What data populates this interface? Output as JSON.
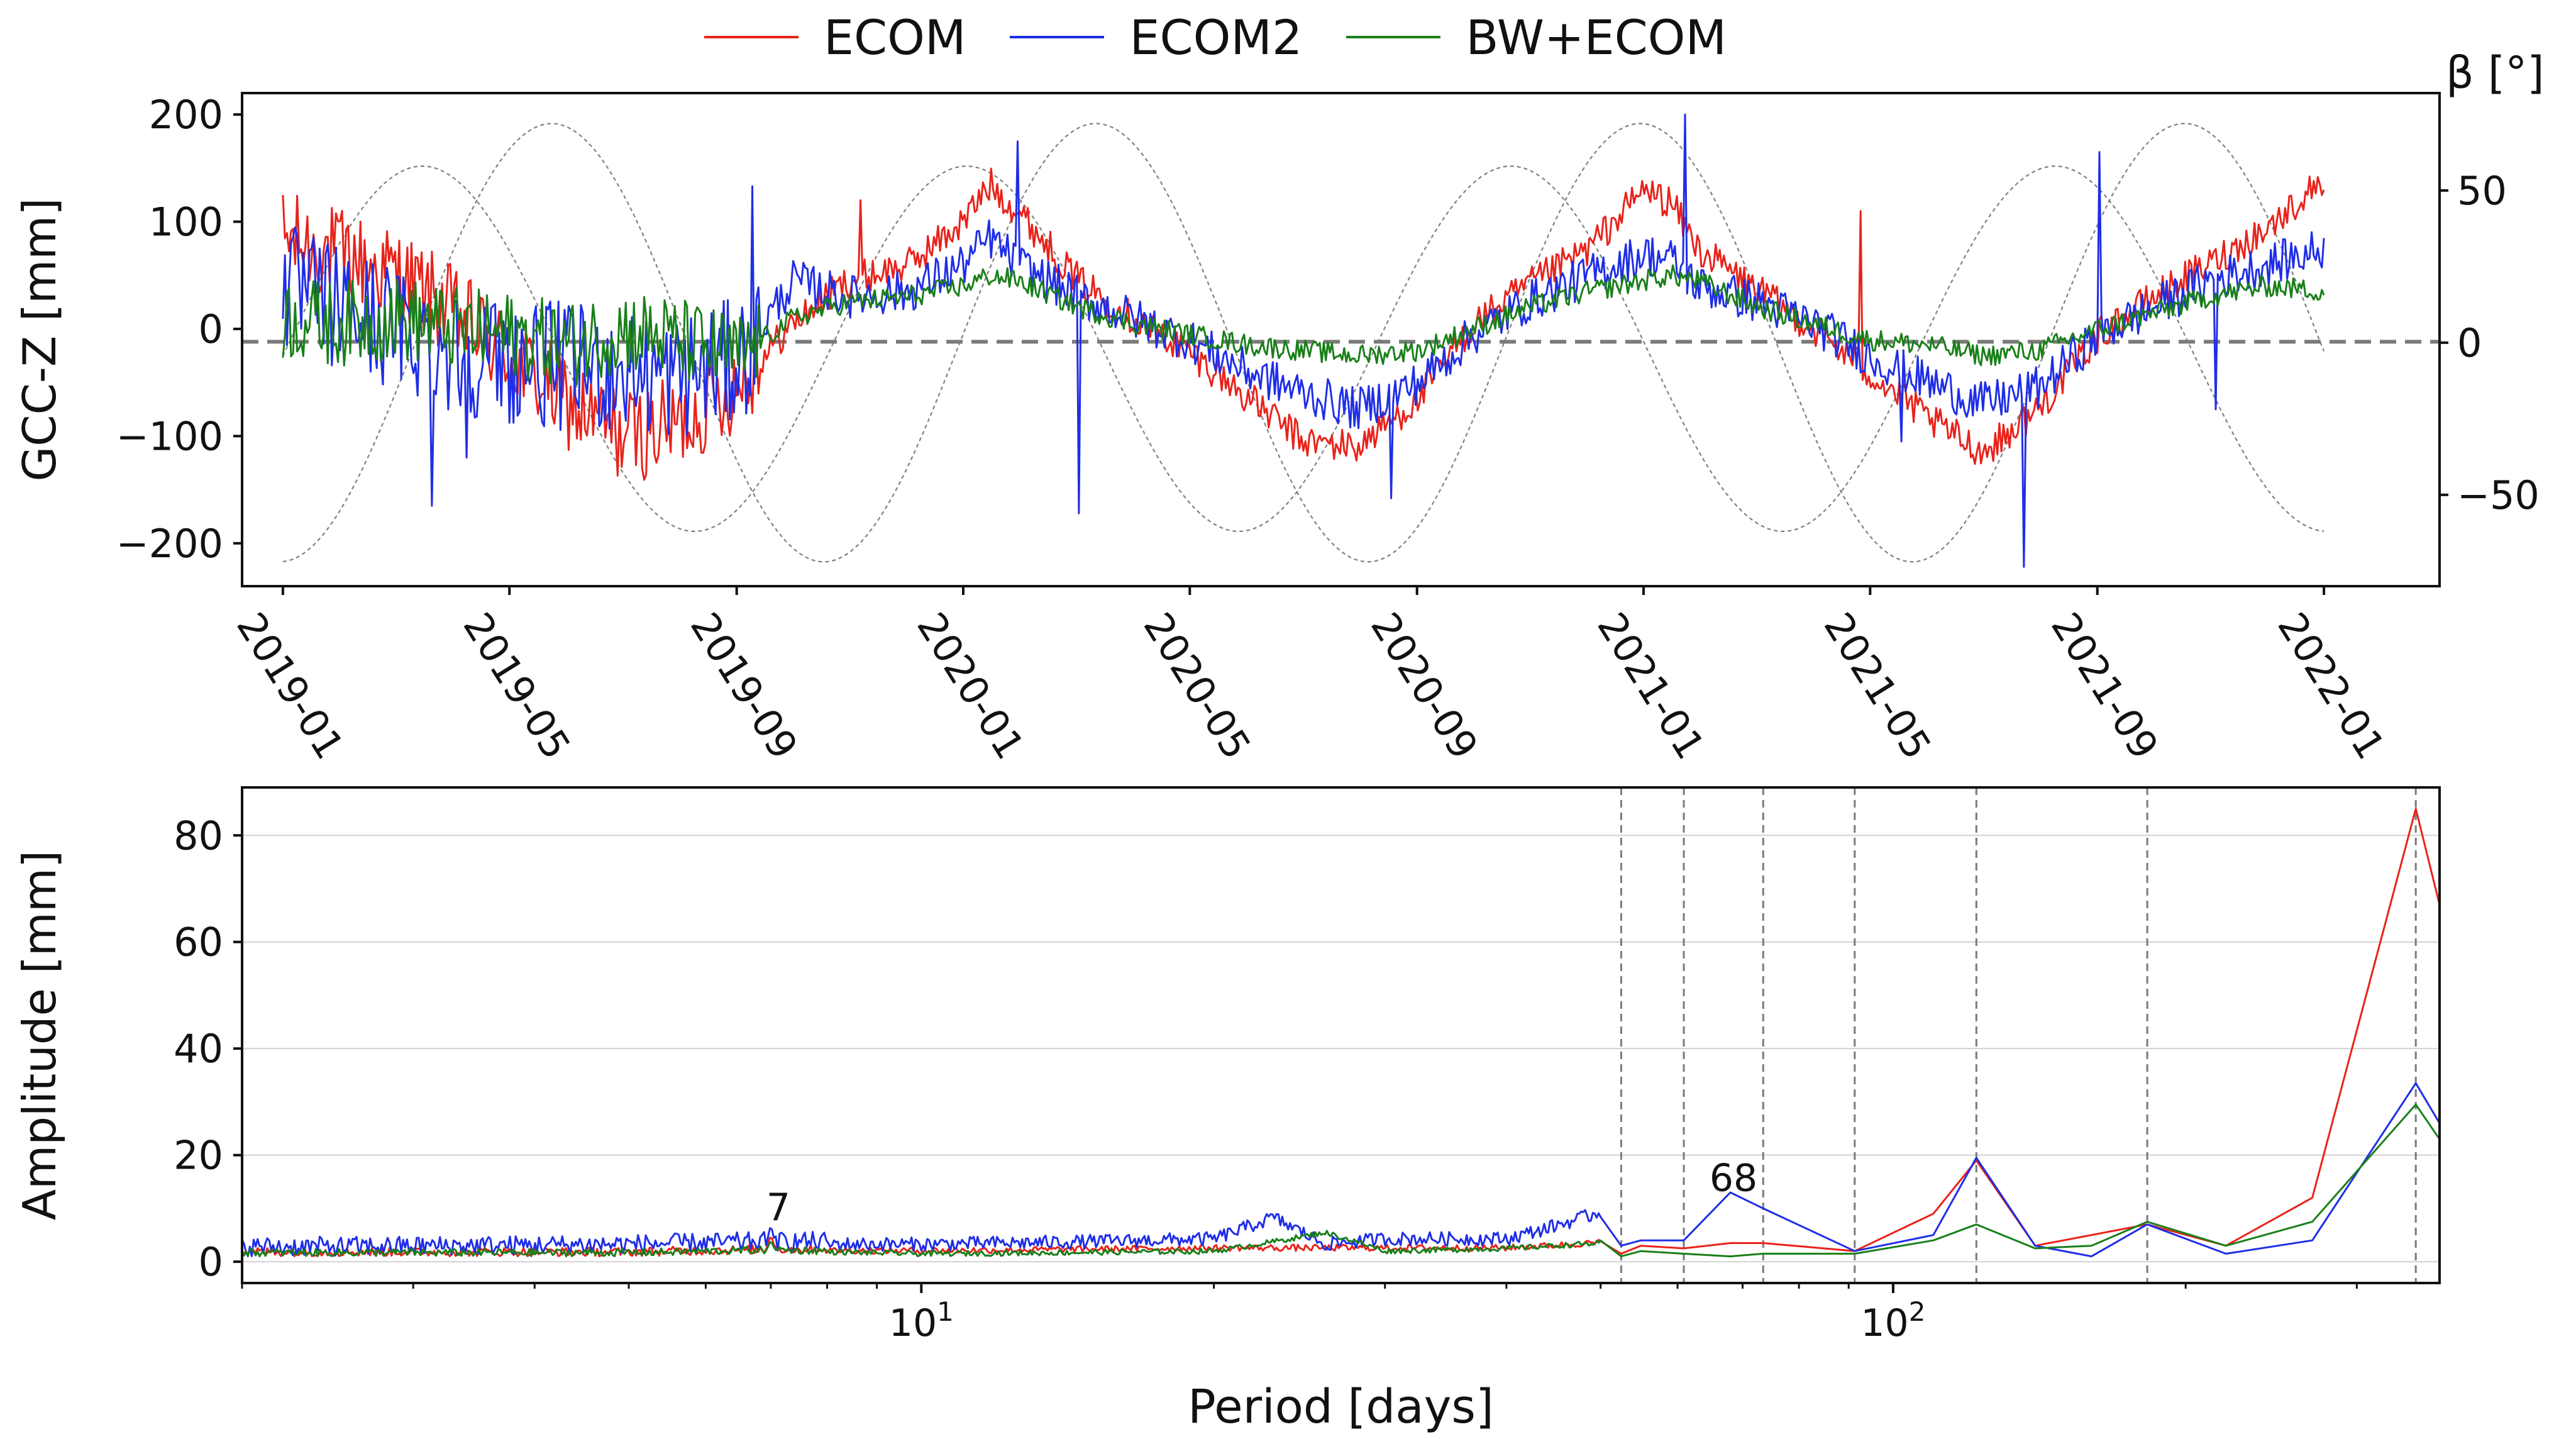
{
  "colors": {
    "ecom": "#e8231b",
    "ecom2": "#1f2ee6",
    "bw_ecom": "#1a7f1a",
    "beta": "#808080",
    "zero_line": "#7a7a7a",
    "vline": "#7a7a7a",
    "grid": "#d2d2d2"
  },
  "legend": [
    {
      "label": "ECOM",
      "color": "#e8231b"
    },
    {
      "label": "ECOM2",
      "color": "#1f2ee6"
    },
    {
      "label": "BW+ECOM",
      "color": "#1a7f1a"
    }
  ],
  "chart_data": [
    {
      "type": "line",
      "title": "",
      "xlabel": "",
      "ylabel": "GCC-Z [mm]",
      "y2label": "β [°]",
      "xlim": [
        2018.94,
        2022.17
      ],
      "ylim": [
        -240,
        220
      ],
      "y2lim": [
        -80,
        82
      ],
      "yticks": [
        {
          "value": 200,
          "label": "200"
        },
        {
          "value": 100,
          "label": "100"
        },
        {
          "value": 0,
          "label": "0"
        },
        {
          "value": -100,
          "label": "−100"
        },
        {
          "value": -200,
          "label": "−200"
        }
      ],
      "y2ticks": [
        {
          "value": 50,
          "label": "50"
        },
        {
          "value": 0,
          "label": "0"
        },
        {
          "value": -50,
          "label": "−50"
        }
      ],
      "xticks": [
        {
          "value": 2019.0,
          "label": "2019-01"
        },
        {
          "value": 2019.333,
          "label": "2019-05"
        },
        {
          "value": 2019.667,
          "label": "2019-09"
        },
        {
          "value": 2020.0,
          "label": "2020-01"
        },
        {
          "value": 2020.333,
          "label": "2020-05"
        },
        {
          "value": 2020.667,
          "label": "2020-09"
        },
        {
          "value": 2021.0,
          "label": "2021-01"
        },
        {
          "value": 2021.333,
          "label": "2021-05"
        },
        {
          "value": 2021.667,
          "label": "2021-09"
        },
        {
          "value": 2022.0,
          "label": "2022-01"
        }
      ],
      "zero_line": -12,
      "series": [
        {
          "name": "ECOM",
          "color": "#e8231b",
          "x": [
            2019.0,
            2019.08,
            2019.17,
            2019.25,
            2019.33,
            2019.42,
            2019.5,
            2019.58,
            2019.67,
            2019.75,
            2019.83,
            2019.92,
            2020.0,
            2020.04,
            2020.08,
            2020.17,
            2020.25,
            2020.33,
            2020.42,
            2020.5,
            2020.58,
            2020.67,
            2020.75,
            2020.83,
            2020.92,
            2021.0,
            2021.04,
            2021.08,
            2021.17,
            2021.25,
            2021.33,
            2021.42,
            2021.5,
            2021.58,
            2021.67,
            2021.75,
            2021.83,
            2021.92,
            2022.0
          ],
          "values": [
            85,
            70,
            50,
            15,
            -25,
            -70,
            -100,
            -90,
            -50,
            5,
            45,
            60,
            100,
            135,
            110,
            45,
            10,
            -20,
            -65,
            -105,
            -110,
            -65,
            5,
            40,
            75,
            130,
            118,
            75,
            35,
            0,
            -40,
            -85,
            -115,
            -75,
            -5,
            30,
            60,
            95,
            140
          ]
        },
        {
          "name": "ECOM2",
          "color": "#1f2ee6",
          "x": [
            2019.0,
            2019.08,
            2019.17,
            2019.25,
            2019.33,
            2019.42,
            2019.5,
            2019.58,
            2019.67,
            2019.75,
            2019.83,
            2019.92,
            2020.0,
            2020.04,
            2020.08,
            2020.17,
            2020.25,
            2020.33,
            2020.42,
            2020.5,
            2020.58,
            2020.67,
            2020.75,
            2020.83,
            2020.92,
            2021.0,
            2021.04,
            2021.08,
            2021.17,
            2021.25,
            2021.33,
            2021.42,
            2021.5,
            2021.58,
            2021.67,
            2021.75,
            2021.83,
            2021.92,
            2022.0
          ],
          "values": [
            40,
            20,
            0,
            -20,
            -30,
            -35,
            -40,
            -45,
            -30,
            45,
            30,
            35,
            60,
            85,
            60,
            30,
            10,
            -10,
            -40,
            -60,
            -75,
            -50,
            -5,
            25,
            50,
            70,
            65,
            40,
            25,
            5,
            -25,
            -50,
            -70,
            -55,
            -5,
            20,
            45,
            60,
            75
          ]
        },
        {
          "name": "BW+ECOM",
          "color": "#1a7f1a",
          "x": [
            2019.0,
            2019.08,
            2019.17,
            2019.25,
            2019.33,
            2019.42,
            2019.5,
            2019.58,
            2019.67,
            2019.75,
            2019.83,
            2019.92,
            2020.0,
            2020.04,
            2020.08,
            2020.17,
            2020.25,
            2020.33,
            2020.42,
            2020.5,
            2020.58,
            2020.67,
            2020.75,
            2020.83,
            2020.92,
            2021.0,
            2021.04,
            2021.08,
            2021.17,
            2021.25,
            2021.33,
            2021.42,
            2021.5,
            2021.58,
            2021.67,
            2021.75,
            2021.83,
            2021.92,
            2022.0
          ],
          "values": [
            10,
            5,
            10,
            0,
            -5,
            -15,
            0,
            -10,
            -25,
            10,
            25,
            30,
            40,
            50,
            45,
            20,
            5,
            -5,
            -15,
            -20,
            -25,
            -20,
            0,
            20,
            35,
            45,
            50,
            45,
            20,
            5,
            -10,
            -15,
            -25,
            -20,
            0,
            15,
            30,
            40,
            35
          ]
        }
      ],
      "beta_curves": {
        "label": "β [°]",
        "amplitude_deg": [
          72,
          60,
          72,
          60
        ],
        "cycle_months": [
          5.9,
          4.3
        ]
      },
      "spikes": [
        {
          "series": "ECOM2",
          "x": 2019.22,
          "y": -165
        },
        {
          "series": "ECOM2",
          "x": 2019.27,
          "y": -120
        },
        {
          "series": "ECOM2",
          "x": 2019.69,
          "y": 133
        },
        {
          "series": "ECOM2",
          "x": 2020.08,
          "y": 175
        },
        {
          "series": "ECOM2",
          "x": 2020.17,
          "y": -172
        },
        {
          "series": "ECOM2",
          "x": 2020.63,
          "y": -158
        },
        {
          "series": "ECOM2",
          "x": 2021.06,
          "y": 200
        },
        {
          "series": "ECOM2",
          "x": 2021.38,
          "y": -105
        },
        {
          "series": "ECOM2",
          "x": 2021.56,
          "y": -222
        },
        {
          "series": "ECOM2",
          "x": 2021.67,
          "y": 165
        },
        {
          "series": "ECOM2",
          "x": 2021.84,
          "y": -75
        },
        {
          "series": "ECOM",
          "x": 2019.85,
          "y": 120
        },
        {
          "series": "ECOM",
          "x": 2021.32,
          "y": 110
        }
      ]
    },
    {
      "type": "line",
      "title": "",
      "xlabel": "Period [days]",
      "ylabel": "Amplitude [mm]",
      "xscale": "log",
      "xlim": [
        2.0,
        365
      ],
      "ylim": [
        -4,
        89
      ],
      "yticks": [
        {
          "value": 80,
          "label": "80"
        },
        {
          "value": 60,
          "label": "60"
        },
        {
          "value": 40,
          "label": "40"
        },
        {
          "value": 20,
          "label": "20"
        },
        {
          "value": 0,
          "label": "0"
        }
      ],
      "xticks_major": [
        {
          "value": 10,
          "base": "10",
          "exp": "1"
        },
        {
          "value": 100,
          "base": "10",
          "exp": "2"
        }
      ],
      "vlines": [
        52.5,
        60.9,
        73.5,
        91.3,
        121.8,
        182.6,
        345
      ],
      "annotations": [
        {
          "text": "7",
          "x": 7.0,
          "y": 8.5
        },
        {
          "text": "68",
          "x": 68.0,
          "y": 14
        }
      ],
      "series": [
        {
          "name": "ECOM",
          "color": "#e8231b",
          "x": [
            2.0,
            5,
            6.9,
            7.0,
            7.1,
            10,
            20,
            30,
            40,
            50,
            52.5,
            55,
            60.9,
            68,
            73.5,
            91.3,
            110,
            121.8,
            140,
            182.6,
            220,
            270,
            345,
            365
          ],
          "values": [
            1,
            1,
            1.5,
            5,
            1.5,
            1.5,
            2,
            2,
            2,
            3,
            1.5,
            3,
            2.5,
            3.5,
            3.5,
            2,
            9,
            19,
            3,
            7,
            3,
            12,
            85,
            67
          ]
        },
        {
          "name": "ECOM2",
          "color": "#1f2ee6",
          "x": [
            2.0,
            5,
            6.9,
            7.0,
            7.1,
            10,
            20,
            23,
            26,
            30,
            40,
            50,
            52.5,
            55,
            60.9,
            68,
            73.5,
            91.3,
            110,
            121.8,
            140,
            160,
            182.6,
            220,
            270,
            345,
            365
          ],
          "values": [
            1,
            1.5,
            2,
            7,
            2,
            2,
            3,
            7,
            2,
            3,
            3,
            8,
            3,
            4,
            4,
            13,
            10,
            2,
            5,
            19.5,
            3,
            1,
            7,
            1.5,
            4,
            33.5,
            26
          ]
        },
        {
          "name": "BW+ECOM",
          "color": "#1a7f1a",
          "x": [
            2.0,
            5,
            6.9,
            7.0,
            7.1,
            10,
            20,
            26,
            30,
            40,
            50,
            52.5,
            55,
            60.9,
            68,
            73.5,
            91.3,
            110,
            121.8,
            140,
            160,
            182.6,
            220,
            270,
            345,
            365
          ],
          "values": [
            1,
            1,
            1.5,
            4,
            1.5,
            1,
            1.5,
            5,
            1.5,
            2,
            3,
            1,
            2,
            1.5,
            1,
            1.5,
            1.5,
            4,
            7,
            2.5,
            3,
            7.5,
            3,
            7.5,
            29.5,
            23
          ]
        }
      ]
    }
  ]
}
